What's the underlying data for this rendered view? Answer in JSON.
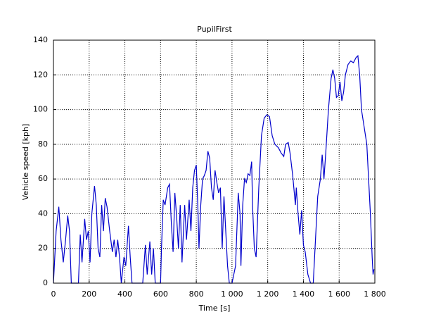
{
  "chart_data": {
    "type": "line",
    "title": "PupilFirst",
    "x_label": "Time [s]",
    "y_label": "Vehicle speed [kph]",
    "color": "#0000cc",
    "grid": true,
    "xlim": [
      0,
      1800
    ],
    "ylim": [
      0,
      140
    ],
    "xticks": [
      0,
      200,
      400,
      600,
      800,
      {
        "value": 1000,
        "label": "1 000"
      },
      {
        "value": 1200,
        "label": "1 200"
      },
      {
        "value": 1400,
        "label": "1 400"
      },
      {
        "value": 1600,
        "label": "1 600"
      },
      {
        "value": 1800,
        "label": "1 800"
      }
    ],
    "yticks": [
      0,
      20,
      40,
      60,
      80,
      100,
      120,
      140
    ],
    "x": [
      0,
      15,
      30,
      42,
      55,
      68,
      80,
      90,
      100,
      140,
      150,
      160,
      175,
      185,
      195,
      205,
      215,
      230,
      240,
      250,
      260,
      270,
      280,
      290,
      300,
      315,
      330,
      340,
      350,
      360,
      370,
      380,
      395,
      405,
      420,
      430,
      440,
      500,
      515,
      525,
      540,
      550,
      560,
      570,
      600,
      605,
      615,
      625,
      640,
      650,
      660,
      670,
      680,
      690,
      700,
      710,
      720,
      735,
      745,
      760,
      770,
      780,
      790,
      800,
      810,
      815,
      825,
      835,
      845,
      855,
      865,
      875,
      885,
      895,
      905,
      915,
      925,
      935,
      945,
      955,
      965,
      975,
      985,
      1000,
      1020,
      1035,
      1045,
      1050,
      1060,
      1070,
      1080,
      1090,
      1100,
      1110,
      1115,
      1125,
      1135,
      1150,
      1165,
      1180,
      1195,
      1210,
      1225,
      1240,
      1260,
      1275,
      1290,
      1300,
      1315,
      1325,
      1340,
      1355,
      1360,
      1370,
      1380,
      1390,
      1400,
      1410,
      1425,
      1440,
      1455,
      1465,
      1480,
      1495,
      1505,
      1515,
      1525,
      1540,
      1555,
      1565,
      1575,
      1585,
      1595,
      1605,
      1615,
      1625,
      1635,
      1650,
      1665,
      1680,
      1695,
      1705,
      1715,
      1725,
      1740,
      1755,
      1765,
      1775,
      1785,
      1790,
      1795
    ],
    "values": [
      0,
      30,
      44,
      25,
      12,
      25,
      39,
      30,
      0,
      0,
      28,
      12,
      37,
      25,
      30,
      12,
      40,
      56,
      45,
      20,
      15,
      45,
      30,
      49,
      44,
      30,
      18,
      25,
      15,
      25,
      15,
      0,
      15,
      10,
      33,
      15,
      0,
      0,
      22,
      5,
      24,
      5,
      20,
      0,
      0,
      20,
      48,
      45,
      55,
      57,
      35,
      18,
      52,
      38,
      20,
      45,
      12,
      45,
      25,
      48,
      30,
      55,
      65,
      68,
      40,
      20,
      45,
      60,
      62,
      65,
      76,
      72,
      55,
      48,
      65,
      58,
      52,
      55,
      20,
      50,
      30,
      10,
      0,
      0,
      10,
      52,
      40,
      10,
      45,
      60,
      58,
      63,
      62,
      70,
      45,
      20,
      15,
      55,
      85,
      95,
      97,
      96,
      85,
      80,
      78,
      75,
      73,
      80,
      81,
      75,
      62,
      45,
      55,
      40,
      28,
      42,
      22,
      18,
      5,
      0,
      0,
      20,
      50,
      60,
      74,
      60,
      75,
      100,
      118,
      123,
      118,
      107,
      108,
      116,
      105,
      110,
      120,
      126,
      128,
      127,
      130,
      131,
      120,
      100,
      90,
      80,
      60,
      40,
      15,
      5,
      8
    ]
  }
}
